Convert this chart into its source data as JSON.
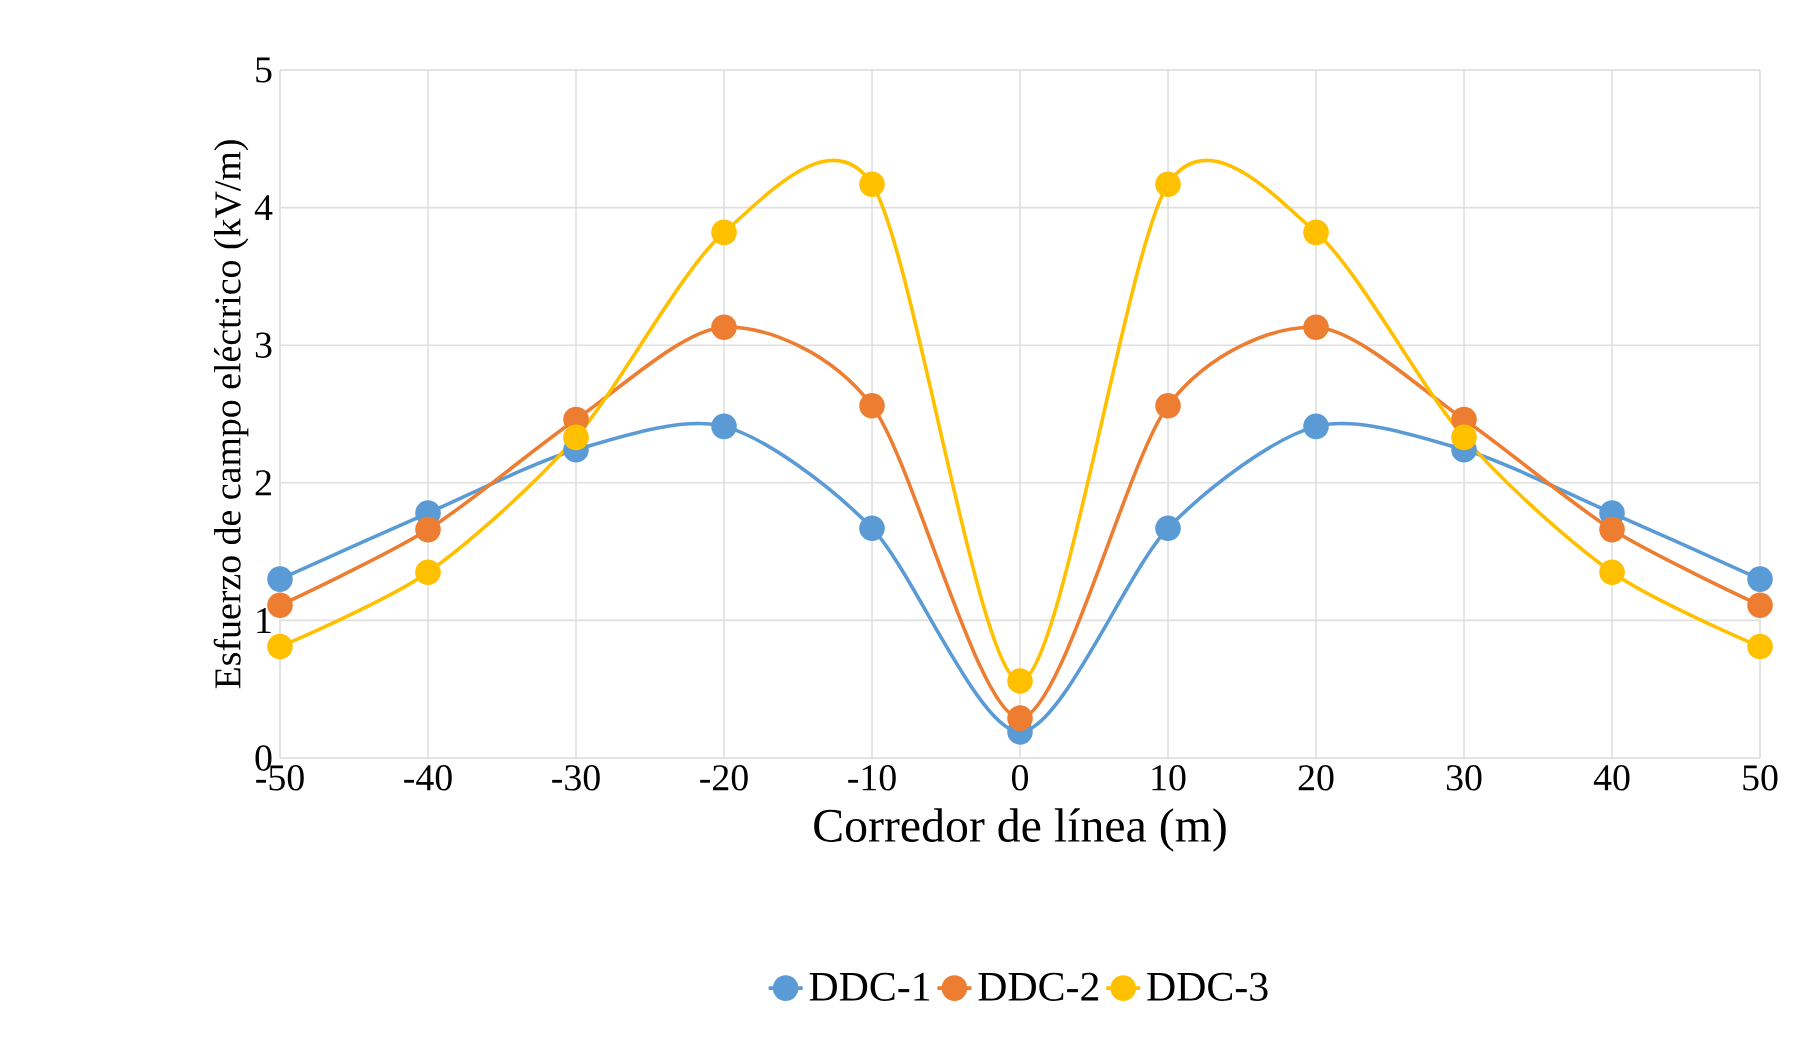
{
  "chart_data": {
    "type": "line",
    "xlabel": "Corredor de línea (m)",
    "ylabel": "Esfuerzo de campo eléctrico (kV/m)",
    "x": [
      -50,
      -40,
      -30,
      -20,
      -10,
      0,
      10,
      20,
      30,
      40,
      50
    ],
    "series": [
      {
        "name": "DDC-1",
        "color": "#5b9bd5",
        "values": [
          1.3,
          1.78,
          2.24,
          2.41,
          1.67,
          0.19,
          1.67,
          2.41,
          2.24,
          1.78,
          1.3
        ]
      },
      {
        "name": "DDC-2",
        "color": "#ed7d31",
        "values": [
          1.11,
          1.66,
          2.46,
          3.13,
          2.56,
          0.29,
          2.56,
          3.13,
          2.46,
          1.66,
          1.11
        ]
      },
      {
        "name": "DDC-3",
        "color": "#ffc000",
        "values": [
          0.81,
          1.35,
          2.33,
          3.82,
          4.17,
          0.56,
          4.17,
          3.82,
          2.33,
          1.35,
          0.81
        ]
      }
    ],
    "xlim": [
      -50,
      50
    ],
    "xticks": [
      -50,
      -40,
      -30,
      -20,
      -10,
      0,
      10,
      20,
      30,
      40,
      50
    ],
    "ylim": [
      0,
      5
    ],
    "yticks": [
      0,
      1,
      2,
      3,
      4,
      5
    ],
    "grid": true,
    "legend": "bottom",
    "marker": "circle",
    "line_style": "solid"
  }
}
